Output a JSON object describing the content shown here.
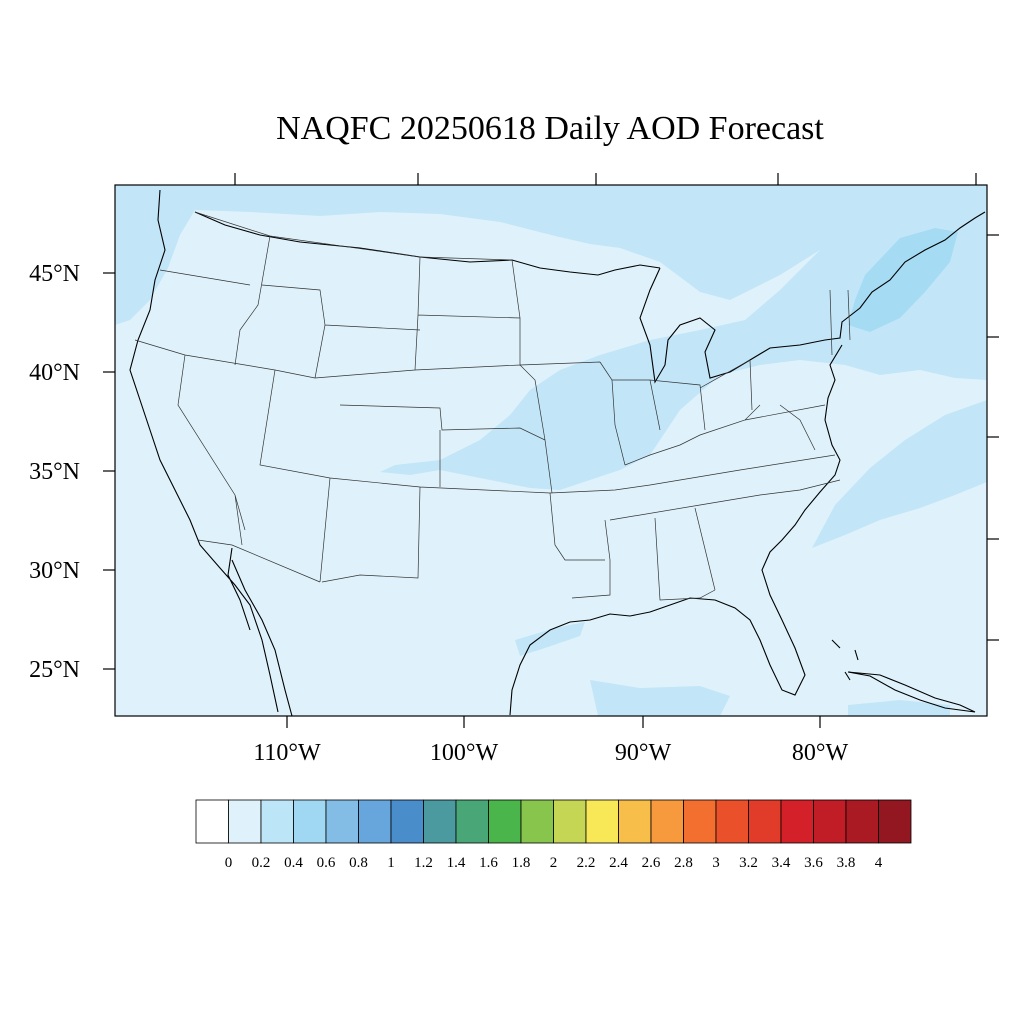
{
  "title": "NAQFC 20250618 Daily AOD Forecast",
  "map": {
    "lat_labels": [
      "45°N",
      "40°N",
      "35°N",
      "30°N",
      "25°N"
    ],
    "lon_labels": [
      "110°W",
      "100°W",
      "90°W",
      "80°W"
    ],
    "background_color": "#dff2fb",
    "plume_color": "#c2e6f8",
    "dense_plume_color": "#a6dbf4",
    "coastline_color": "#000000",
    "state_line_color": "#333333"
  },
  "colorbar": {
    "labels": [
      "0",
      "0.2",
      "0.4",
      "0.6",
      "0.8",
      "1",
      "1.2",
      "1.4",
      "1.6",
      "1.8",
      "2",
      "2.2",
      "2.4",
      "2.6",
      "2.8",
      "3",
      "3.2",
      "3.4",
      "3.6",
      "3.8",
      "4"
    ],
    "colors": [
      "#ffffff",
      "#dff2fb",
      "#bce5f8",
      "#a0d8f4",
      "#83bde6",
      "#67a6dc",
      "#4a8dcb",
      "#4a9aa0",
      "#49a677",
      "#4ab54a",
      "#87c54d",
      "#c4d654",
      "#f8e857",
      "#f7be49",
      "#f69a3d",
      "#f36f30",
      "#ea512b",
      "#e13b29",
      "#d42029",
      "#c01d26",
      "#a91a23",
      "#921720"
    ]
  }
}
